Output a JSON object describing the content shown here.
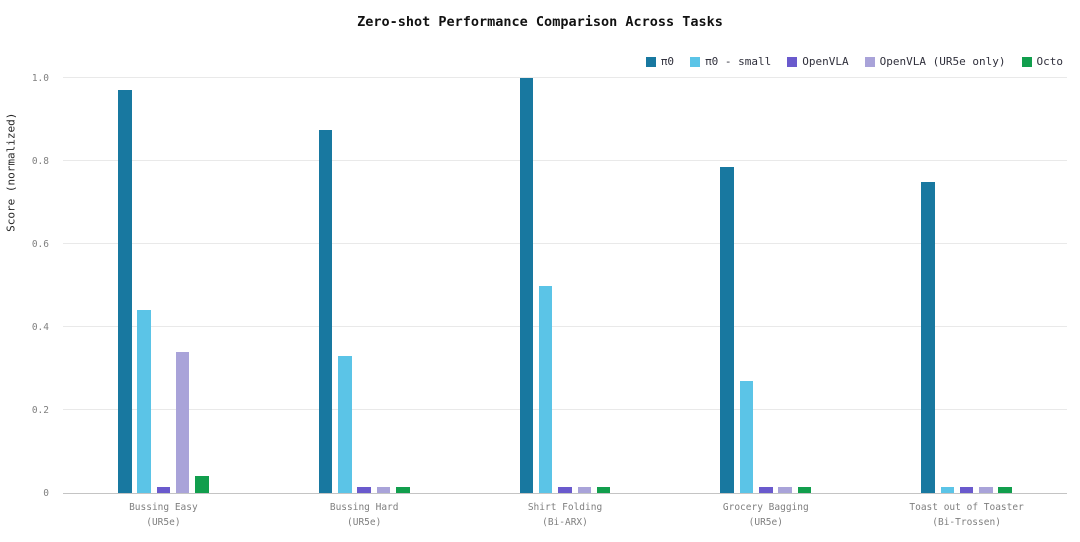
{
  "figure": {
    "background": "#ffffff",
    "text_color": "#111111",
    "tick_color": "#7f7f7f",
    "gridline_color": "#e9e9e9",
    "axis_line_color": "#c4c4c4"
  },
  "chart_data": {
    "type": "bar",
    "title": "Zero-shot Performance Comparison Across Tasks",
    "xlabel": "",
    "ylabel": "Score (normalized)",
    "ylim": [
      0,
      1.0
    ],
    "yticks": [
      0,
      0.2,
      0.4,
      0.6,
      0.8,
      1.0
    ],
    "ytick_labels": [
      "0",
      "0.2",
      "0.4",
      "0.6",
      "0.8",
      "1.0"
    ],
    "grid": "horizontal",
    "legend_position": "top-right",
    "categories": [
      {
        "line1": "Bussing Easy",
        "line2": "(UR5e)"
      },
      {
        "line1": "Bussing Hard",
        "line2": "(UR5e)"
      },
      {
        "line1": "Shirt Folding",
        "line2": "(Bi-ARX)"
      },
      {
        "line1": "Grocery Bagging",
        "line2": "(UR5e)"
      },
      {
        "line1": "Toast out of Toaster",
        "line2": "(Bi-Trossen)"
      }
    ],
    "series": [
      {
        "name": "π0",
        "color": "#1878a0",
        "values": [
          0.97,
          0.875,
          1.0,
          0.785,
          0.75
        ]
      },
      {
        "name": "π0 - small",
        "color": "#5bc4e7",
        "values": [
          0.44,
          0.33,
          0.5,
          0.27,
          0.015
        ]
      },
      {
        "name": "OpenVLA",
        "color": "#6a5acd",
        "values": [
          0.015,
          0.015,
          0.015,
          0.015,
          0.015
        ]
      },
      {
        "name": "OpenVLA (UR5e only)",
        "color": "#a9a3d9",
        "values": [
          0.34,
          0.015,
          0.015,
          0.015,
          0.015
        ]
      },
      {
        "name": "Octo",
        "color": "#119e4d",
        "values": [
          0.04,
          0.015,
          0.015,
          0.015,
          0.015
        ]
      }
    ]
  }
}
